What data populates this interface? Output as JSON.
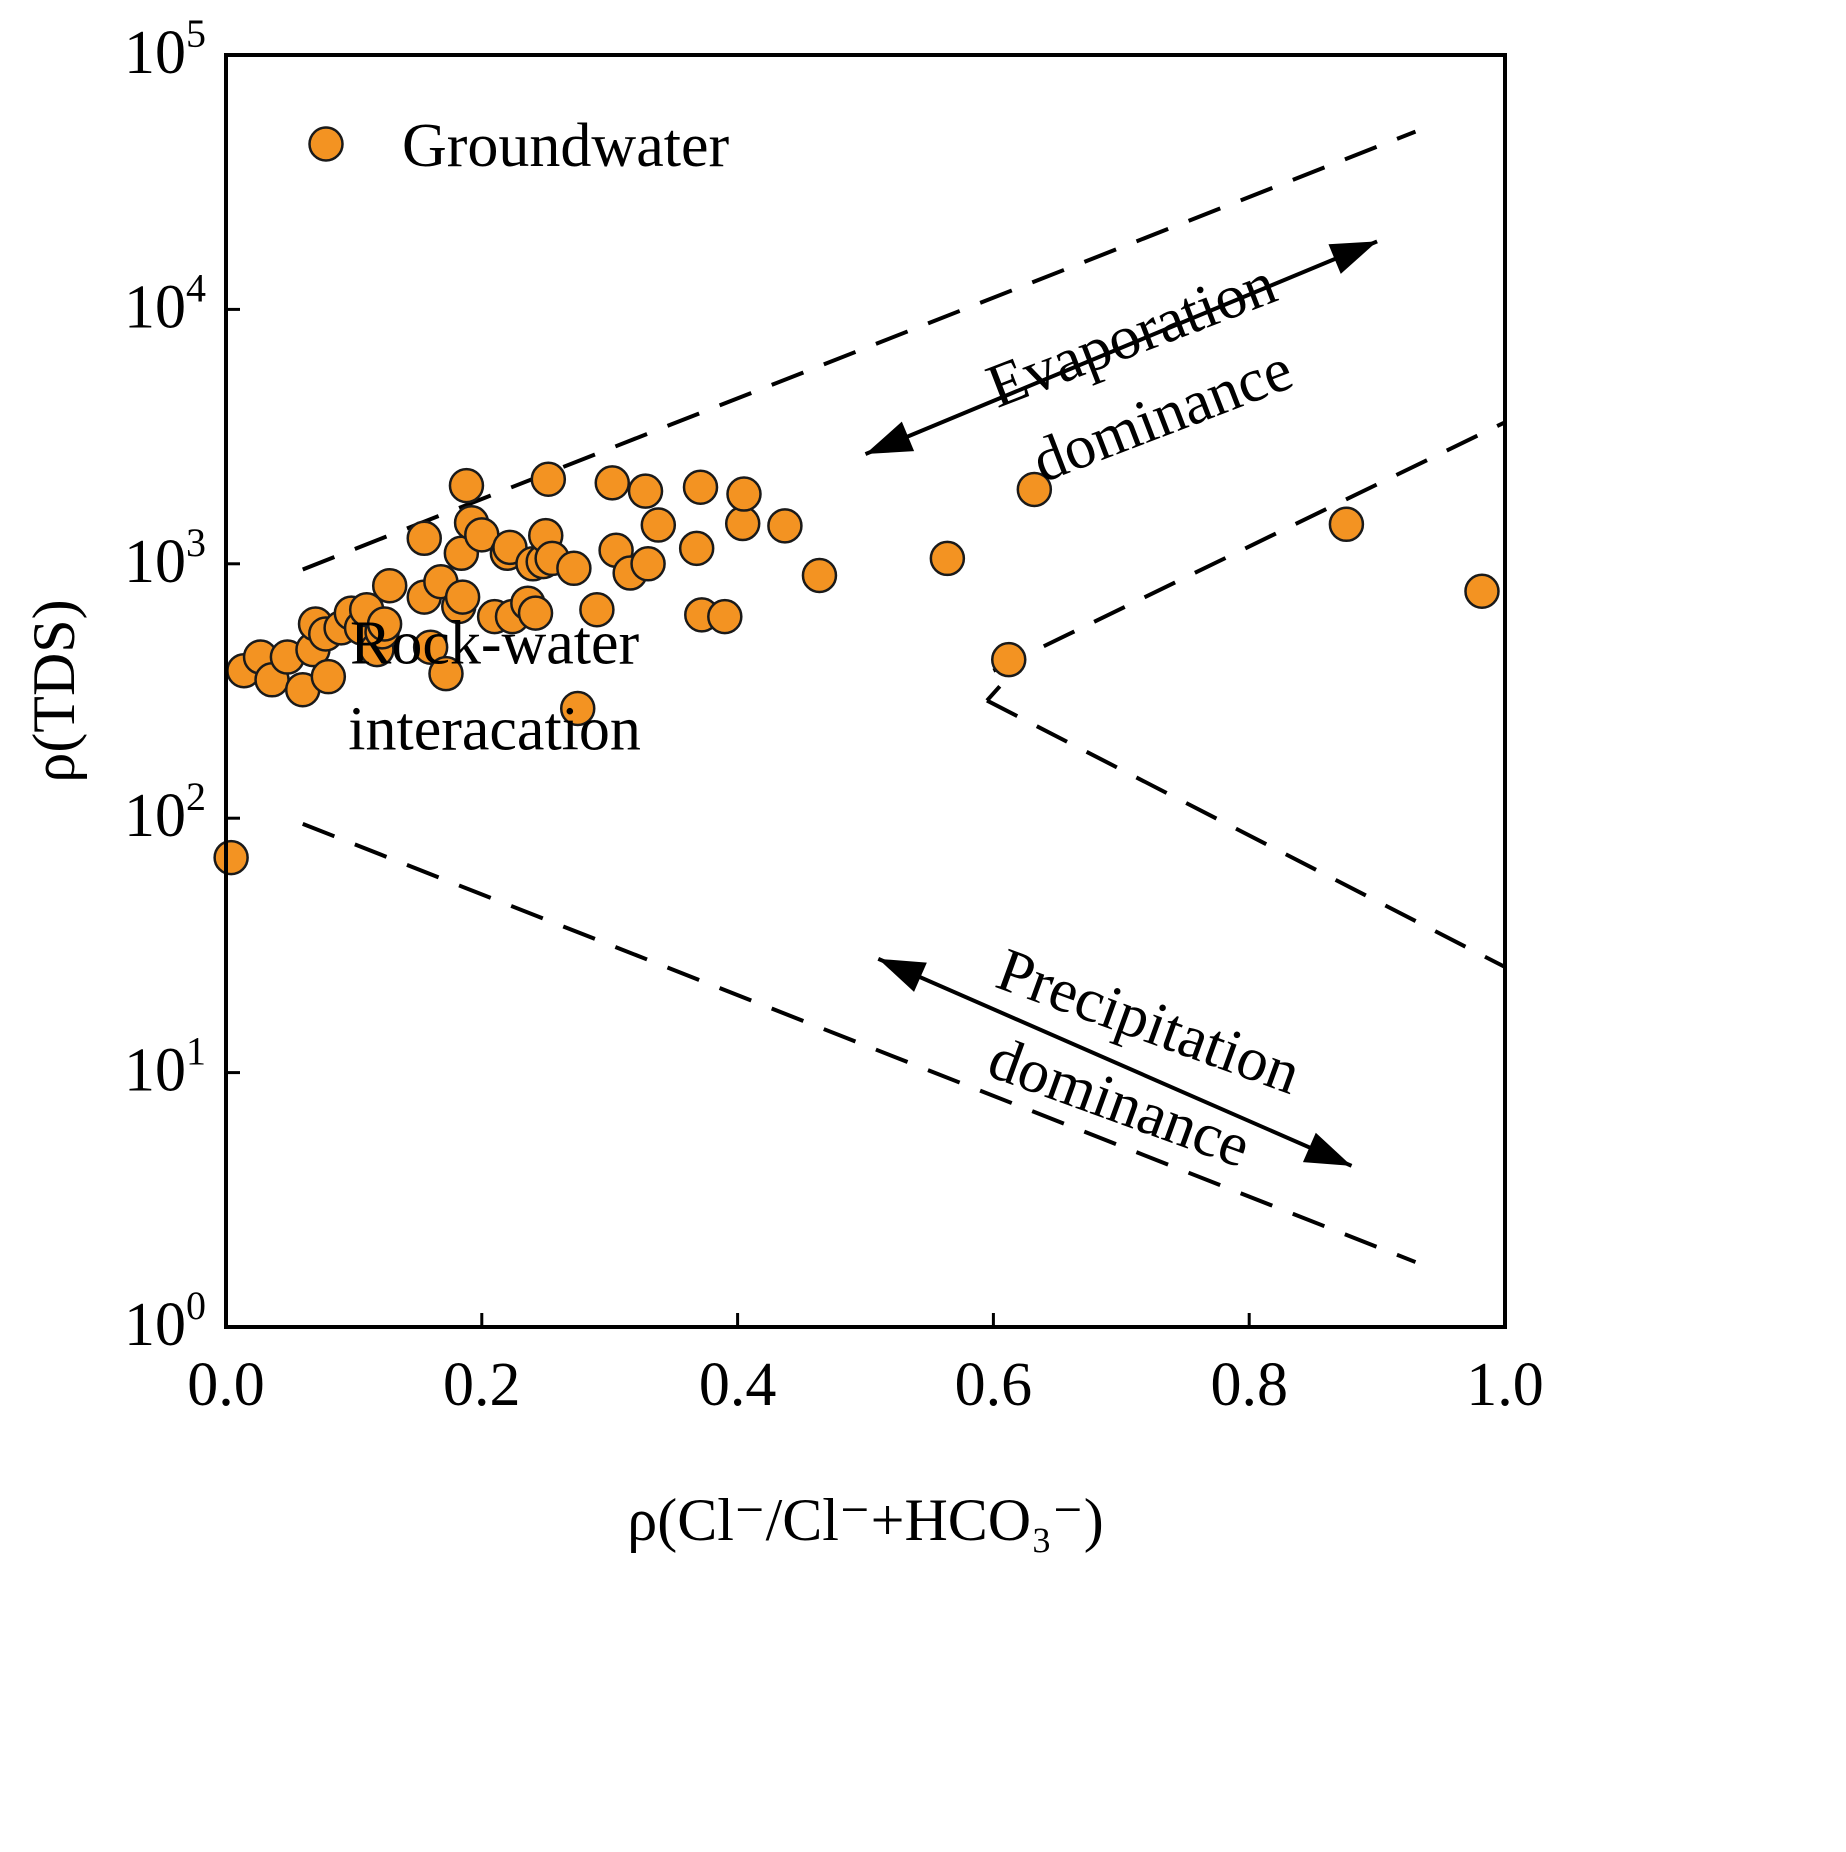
{
  "chart_data": {
    "type": "scatter",
    "title": "",
    "xlabel": "ρ(Cl⁻/Cl⁻+HCO₃⁻)",
    "ylabel": "ρ(TDS)",
    "xlim": [
      0.0,
      1.0
    ],
    "ylim": [
      1,
      100000
    ],
    "yscale": "log",
    "x_ticks": [
      "0.0",
      "0.2",
      "0.4",
      "0.6",
      "0.8",
      "1.0"
    ],
    "y_ticks": [
      {
        "base": "10",
        "exp": "0"
      },
      {
        "base": "10",
        "exp": "1"
      },
      {
        "base": "10",
        "exp": "2"
      },
      {
        "base": "10",
        "exp": "3"
      },
      {
        "base": "10",
        "exp": "4"
      },
      {
        "base": "10",
        "exp": "5"
      }
    ],
    "legend": {
      "label": "Groundwater",
      "position": "top-left"
    },
    "colors": {
      "marker_fill": "#F39322",
      "marker_edge": "#1a1a1a",
      "line": "#000000"
    },
    "series": [
      {
        "name": "Groundwater",
        "points": [
          [
            0.004,
            70
          ],
          [
            0.014,
            380
          ],
          [
            0.027,
            430
          ],
          [
            0.036,
            350
          ],
          [
            0.048,
            430
          ],
          [
            0.06,
            320
          ],
          [
            0.068,
            460
          ],
          [
            0.07,
            580
          ],
          [
            0.078,
            530
          ],
          [
            0.08,
            360
          ],
          [
            0.09,
            560
          ],
          [
            0.098,
            640
          ],
          [
            0.106,
            560
          ],
          [
            0.11,
            660
          ],
          [
            0.118,
            460
          ],
          [
            0.122,
            540
          ],
          [
            0.124,
            580
          ],
          [
            0.128,
            820
          ],
          [
            0.155,
            740
          ],
          [
            0.155,
            1260
          ],
          [
            0.16,
            470
          ],
          [
            0.168,
            850
          ],
          [
            0.172,
            370
          ],
          [
            0.182,
            680
          ],
          [
            0.184,
            1100
          ],
          [
            0.185,
            740
          ],
          [
            0.188,
            2030
          ],
          [
            0.192,
            1450
          ],
          [
            0.2,
            1300
          ],
          [
            0.21,
            620
          ],
          [
            0.22,
            1100
          ],
          [
            0.222,
            1160
          ],
          [
            0.224,
            620
          ],
          [
            0.236,
            700
          ],
          [
            0.24,
            1000
          ],
          [
            0.242,
            640
          ],
          [
            0.248,
            1020
          ],
          [
            0.25,
            1290
          ],
          [
            0.252,
            2150
          ],
          [
            0.255,
            1050
          ],
          [
            0.272,
            960
          ],
          [
            0.275,
            270
          ],
          [
            0.29,
            660
          ],
          [
            0.302,
            2080
          ],
          [
            0.305,
            1130
          ],
          [
            0.316,
            920
          ],
          [
            0.328,
            1930
          ],
          [
            0.33,
            1000
          ],
          [
            0.338,
            1420
          ],
          [
            0.368,
            1150
          ],
          [
            0.371,
            2000
          ],
          [
            0.372,
            630
          ],
          [
            0.39,
            620
          ],
          [
            0.404,
            1440
          ],
          [
            0.405,
            1880
          ],
          [
            0.437,
            1410
          ],
          [
            0.464,
            900
          ],
          [
            0.564,
            1050
          ],
          [
            0.612,
            420
          ],
          [
            0.632,
            1960
          ],
          [
            0.876,
            1430
          ],
          [
            0.982,
            780
          ]
        ]
      }
    ],
    "guide_lines": [
      {
        "name": "evaporation-upper",
        "x": [
          0.06,
          0.93
        ],
        "y": [
          950,
          50000
        ]
      },
      {
        "name": "evaporation-lower",
        "x": [
          0.6,
          1.0
        ],
        "y": [
          380,
          3600
        ]
      },
      {
        "name": "precipitation-upper",
        "x": [
          0.595,
          1.0
        ],
        "y": [
          290,
          26
        ]
      },
      {
        "name": "precipitation-lower",
        "x": [
          0.06,
          0.93
        ],
        "y": [
          95,
          1.8
        ]
      }
    ],
    "arrows": [
      {
        "name": "evaporation-arrow",
        "x": [
          0.5,
          0.9
        ],
        "y": [
          2700,
          18500
        ]
      },
      {
        "name": "precipitation-arrow",
        "x": [
          0.51,
          0.88
        ],
        "y": [
          28,
          4.3
        ]
      }
    ],
    "annotations": [
      {
        "name": "rock-water-label",
        "lines": [
          "Rock-water",
          "interacation"
        ],
        "x": 0.21,
        "y": 330
      },
      {
        "name": "evaporation-label",
        "lines": [
          "Evaporation",
          "dominance"
        ],
        "x": 0.72,
        "y": 5500,
        "rotate": -21
      },
      {
        "name": "precipitation-label",
        "lines": [
          "Precipitation",
          "dominance"
        ],
        "x": 0.71,
        "y": 11,
        "rotate": 20
      }
    ]
  }
}
